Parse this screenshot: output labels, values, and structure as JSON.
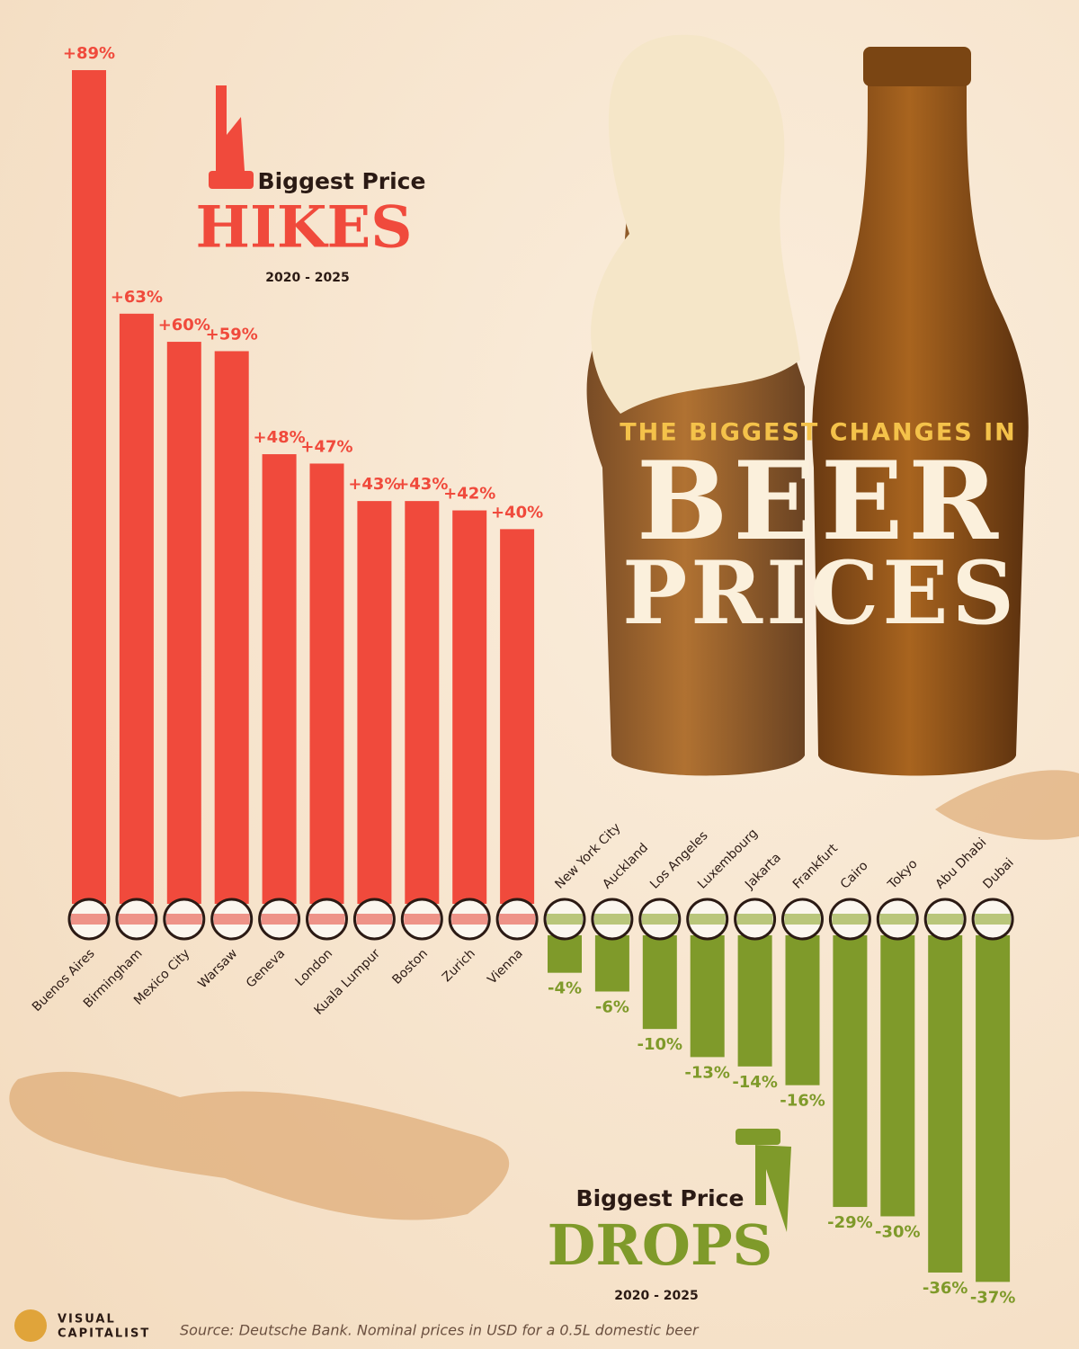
{
  "chart_data": {
    "type": "bar",
    "title": "THE BIGGEST CHANGES IN",
    "title_lines": [
      "BEER",
      "PRICES"
    ],
    "categories": [
      "Buenos Aires",
      "Birmingham",
      "Mexico City",
      "Warsaw",
      "Geneva",
      "London",
      "Kuala Lumpur",
      "Boston",
      "Zurich",
      "Vienna",
      "New York City",
      "Auckland",
      "Los Angeles",
      "Luxembourg",
      "Jakarta",
      "Frankfurt",
      "Cairo",
      "Tokyo",
      "Abu Dhabi",
      "Dubai"
    ],
    "values": [
      89,
      63,
      60,
      59,
      48,
      47,
      43,
      43,
      42,
      40,
      -4,
      -6,
      -10,
      -13,
      -14,
      -16,
      -29,
      -30,
      -36,
      -37
    ],
    "value_labels": [
      "+89%",
      "+63%",
      "+60%",
      "+59%",
      "+48%",
      "+47%",
      "+43%",
      "+43%",
      "+42%",
      "+40%",
      "-4%",
      "-6%",
      "-10%",
      "-13%",
      "-14%",
      "-16%",
      "-29%",
      "-30%",
      "-36%",
      "-37%"
    ],
    "colors": {
      "positive": "#f04a3c",
      "negative": "#7f9a2a"
    },
    "hikes": {
      "heading": "Biggest Price",
      "word": "HIKES",
      "years": "2020 - 2025"
    },
    "drops": {
      "heading": "Biggest Price",
      "word": "DROPS",
      "years": "2020 - 2025"
    },
    "source": "Source: Deutsche Bank. Nominal prices in USD for a 0.5L domestic beer",
    "brand": [
      "VISUAL",
      "CAPITALIST"
    ]
  }
}
